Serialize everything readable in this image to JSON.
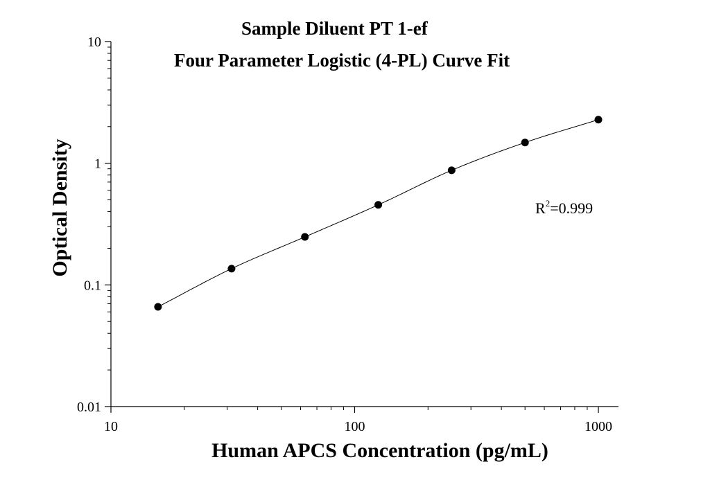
{
  "chart_data": {
    "type": "scatter",
    "title": "Sample Diluent PT 1-ef",
    "subtitle": "Four Parameter Logistic (4-PL) Curve Fit",
    "xlabel": "Human APCS Concentration (pg/mL)",
    "ylabel": "Optical Density",
    "x_scale": "log",
    "y_scale": "log",
    "xlim": [
      10,
      1000
    ],
    "ylim": [
      0.01,
      10
    ],
    "x_ticks": [
      10,
      100,
      1000
    ],
    "x_tick_labels": [
      "10",
      "100",
      "1000"
    ],
    "y_ticks": [
      0.01,
      0.1,
      1,
      10
    ],
    "y_tick_labels": [
      "0.01",
      "0.1",
      "1",
      "10"
    ],
    "grid": false,
    "series": [
      {
        "x": [
          15.6,
          31.25,
          62.5,
          125,
          250,
          500,
          1000
        ],
        "y": [
          0.066,
          0.136,
          0.248,
          0.455,
          0.875,
          1.48,
          2.28
        ],
        "marker": "circle",
        "fit": "4PL"
      }
    ],
    "annotation": {
      "prefix": "R",
      "superscript": "2",
      "suffix": "=0.999"
    }
  }
}
